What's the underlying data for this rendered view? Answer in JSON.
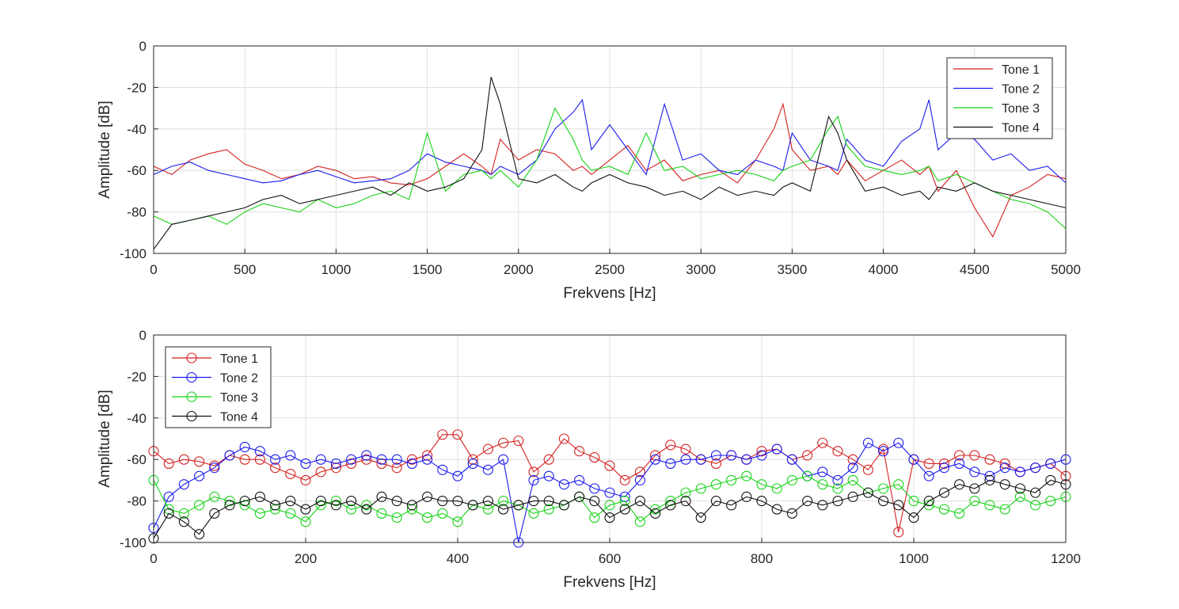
{
  "chart_data": [
    {
      "type": "line",
      "xlabel": "Frekvens [Hz]",
      "ylabel": "Amplitude [dB]",
      "xlim": [
        0,
        5000
      ],
      "ylim": [
        -100,
        0
      ],
      "xticks": [
        "0",
        "500",
        "1000",
        "1500",
        "2000",
        "2500",
        "3000",
        "3500",
        "4000",
        "4500",
        "5000"
      ],
      "yticks": [
        "0",
        "-20",
        "-40",
        "-60",
        "-80",
        "-100"
      ],
      "grid": true,
      "legend_position": "top-right",
      "x": [
        0,
        100,
        200,
        300,
        400,
        500,
        600,
        700,
        800,
        900,
        1000,
        1100,
        1200,
        1300,
        1400,
        1500,
        1600,
        1700,
        1800,
        1850,
        1900,
        2000,
        2100,
        2200,
        2300,
        2350,
        2400,
        2500,
        2600,
        2700,
        2800,
        2900,
        3000,
        3100,
        3200,
        3300,
        3400,
        3450,
        3500,
        3600,
        3700,
        3750,
        3800,
        3900,
        4000,
        4100,
        4200,
        4250,
        4300,
        4400,
        4500,
        4600,
        4700,
        4800,
        4900,
        5000
      ],
      "series": [
        {
          "name": "Tone 1",
          "color": "#d42020",
          "values": [
            -58,
            -62,
            -55,
            -52,
            -50,
            -57,
            -60,
            -64,
            -62,
            -58,
            -60,
            -64,
            -63,
            -66,
            -67,
            -64,
            -58,
            -52,
            -58,
            -62,
            -45,
            -55,
            -50,
            -52,
            -60,
            -58,
            -62,
            -55,
            -48,
            -60,
            -55,
            -65,
            -62,
            -60,
            -66,
            -55,
            -40,
            -28,
            -50,
            -60,
            -58,
            -62,
            -55,
            -65,
            -60,
            -55,
            -62,
            -58,
            -70,
            -60,
            -78,
            -92,
            -72,
            -68,
            -62,
            -64
          ]
        },
        {
          "name": "Tone 2",
          "color": "#1a1aee",
          "values": [
            -62,
            -58,
            -56,
            -60,
            -62,
            -64,
            -66,
            -65,
            -62,
            -60,
            -63,
            -66,
            -65,
            -64,
            -60,
            -52,
            -56,
            -58,
            -60,
            -62,
            -58,
            -62,
            -55,
            -40,
            -32,
            -26,
            -50,
            -38,
            -50,
            -62,
            -28,
            -55,
            -52,
            -60,
            -62,
            -55,
            -58,
            -60,
            -42,
            -55,
            -58,
            -60,
            -45,
            -55,
            -58,
            -46,
            -40,
            -26,
            -50,
            -42,
            -45,
            -55,
            -52,
            -60,
            -58,
            -66
          ]
        },
        {
          "name": "Tone 3",
          "color": "#16d316",
          "values": [
            -82,
            -86,
            -84,
            -82,
            -86,
            -80,
            -76,
            -78,
            -80,
            -74,
            -78,
            -76,
            -72,
            -70,
            -74,
            -42,
            -70,
            -62,
            -60,
            -64,
            -60,
            -68,
            -55,
            -30,
            -45,
            -55,
            -60,
            -58,
            -62,
            -42,
            -60,
            -58,
            -64,
            -62,
            -60,
            -62,
            -65,
            -60,
            -58,
            -55,
            -40,
            -34,
            -48,
            -58,
            -60,
            -62,
            -60,
            -58,
            -65,
            -62,
            -66,
            -70,
            -74,
            -76,
            -80,
            -88
          ]
        },
        {
          "name": "Tone 4",
          "color": "#111111",
          "values": [
            -98,
            -86,
            -84,
            -82,
            -80,
            -78,
            -74,
            -72,
            -76,
            -74,
            -72,
            -70,
            -68,
            -72,
            -66,
            -70,
            -68,
            -64,
            -50,
            -15,
            -28,
            -64,
            -66,
            -62,
            -68,
            -70,
            -66,
            -62,
            -66,
            -68,
            -72,
            -70,
            -74,
            -68,
            -72,
            -70,
            -72,
            -68,
            -66,
            -70,
            -34,
            -42,
            -55,
            -70,
            -68,
            -72,
            -70,
            -74,
            -68,
            -70,
            -66,
            -70,
            -72,
            -74,
            -76,
            -78
          ]
        }
      ]
    },
    {
      "type": "line",
      "xlabel": "Frekvens [Hz]",
      "ylabel": "Amplitude [dB]",
      "xlim": [
        0,
        1200
      ],
      "ylim": [
        -100,
        0
      ],
      "xticks": [
        "0",
        "200",
        "400",
        "600",
        "800",
        "1000",
        "1200"
      ],
      "yticks": [
        "0",
        "-20",
        "-40",
        "-60",
        "-80",
        "-100"
      ],
      "grid": true,
      "legend_position": "top-left",
      "marker": "circle",
      "x": [
        0,
        20,
        40,
        60,
        80,
        100,
        120,
        140,
        160,
        180,
        200,
        220,
        240,
        260,
        280,
        300,
        320,
        340,
        360,
        380,
        400,
        420,
        440,
        460,
        480,
        500,
        520,
        540,
        560,
        580,
        600,
        620,
        640,
        660,
        680,
        700,
        720,
        740,
        760,
        780,
        800,
        820,
        840,
        860,
        880,
        900,
        920,
        940,
        960,
        980,
        1000,
        1020,
        1040,
        1060,
        1080,
        1100,
        1120,
        1140,
        1160,
        1180,
        1200
      ],
      "series": [
        {
          "name": "Tone 1",
          "color": "#d42020",
          "values": [
            -56,
            -62,
            -60,
            -61,
            -63,
            -58,
            -60,
            -60,
            -64,
            -67,
            -70,
            -66,
            -64,
            -62,
            -60,
            -62,
            -64,
            -60,
            -58,
            -48,
            -48,
            -60,
            -55,
            -52,
            -51,
            -66,
            -60,
            -50,
            -56,
            -59,
            -63,
            -70,
            -66,
            -58,
            -53,
            -55,
            -60,
            -62,
            -58,
            -60,
            -56,
            -55,
            -60,
            -58,
            -52,
            -56,
            -60,
            -65,
            -55,
            -95,
            -60,
            -62,
            -62,
            -58,
            -58,
            -60,
            -62,
            -66,
            -64,
            -62,
            -68
          ]
        },
        {
          "name": "Tone 2",
          "color": "#1a1aee",
          "values": [
            -93,
            -78,
            -72,
            -68,
            -64,
            -58,
            -54,
            -56,
            -60,
            -58,
            -62,
            -60,
            -62,
            -60,
            -58,
            -60,
            -60,
            -62,
            -60,
            -65,
            -68,
            -62,
            -65,
            -60,
            -100,
            -70,
            -68,
            -72,
            -70,
            -74,
            -76,
            -78,
            -70,
            -60,
            -62,
            -60,
            -60,
            -58,
            -58,
            -60,
            -58,
            -55,
            -60,
            -68,
            -66,
            -70,
            -64,
            -52,
            -56,
            -52,
            -60,
            -68,
            -64,
            -62,
            -66,
            -68,
            -64,
            -66,
            -64,
            -62,
            -60
          ]
        },
        {
          "name": "Tone 3",
          "color": "#16d316",
          "values": [
            -70,
            -84,
            -86,
            -82,
            -78,
            -80,
            -82,
            -86,
            -84,
            -86,
            -90,
            -82,
            -80,
            -84,
            -82,
            -86,
            -88,
            -84,
            -88,
            -86,
            -90,
            -82,
            -84,
            -80,
            -82,
            -86,
            -84,
            -82,
            -78,
            -88,
            -82,
            -80,
            -90,
            -84,
            -80,
            -76,
            -74,
            -72,
            -70,
            -68,
            -72,
            -74,
            -70,
            -68,
            -72,
            -74,
            -70,
            -76,
            -74,
            -72,
            -80,
            -82,
            -84,
            -86,
            -80,
            -82,
            -84,
            -78,
            -82,
            -80,
            -78
          ]
        },
        {
          "name": "Tone 4",
          "color": "#111111",
          "values": [
            -98,
            -86,
            -90,
            -96,
            -86,
            -82,
            -80,
            -78,
            -82,
            -80,
            -84,
            -80,
            -82,
            -80,
            -84,
            -78,
            -80,
            -82,
            -78,
            -80,
            -80,
            -82,
            -80,
            -84,
            -82,
            -80,
            -80,
            -82,
            -78,
            -80,
            -88,
            -84,
            -80,
            -86,
            -82,
            -80,
            -88,
            -80,
            -82,
            -78,
            -80,
            -84,
            -86,
            -80,
            -82,
            -80,
            -78,
            -76,
            -80,
            -82,
            -88,
            -80,
            -76,
            -72,
            -74,
            -70,
            -72,
            -74,
            -76,
            -70,
            -72
          ]
        }
      ]
    }
  ]
}
